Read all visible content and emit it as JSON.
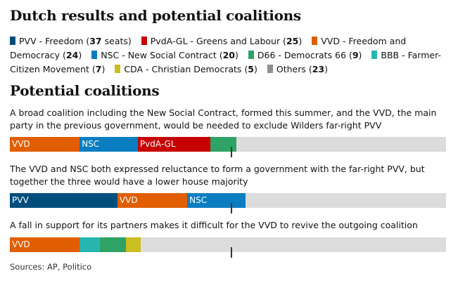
{
  "title": "Dutch results and potential coalitions",
  "subtitle": "Potential coalitions",
  "source": "Sources: AP, Politico",
  "colors": {
    "PVV": "#004e7c",
    "PvdA-GL": "#c70000",
    "VVD": "#e05e00",
    "NSC": "#0a7dc0",
    "D66": "#2ea365",
    "BBB": "#27b5b0",
    "CDA": "#cbbe1f",
    "Others": "#8f8f8f",
    "empty": "#dcdcdc"
  },
  "chart_data": {
    "type": "bar",
    "total_seats": 150,
    "majority": 76,
    "legend": [
      {
        "party": "PVV",
        "label": "PVV - Freedom",
        "seats": 37,
        "count_text": "37",
        "suffix": " seats)"
      },
      {
        "party": "PvdA-GL",
        "label": "PvdA-GL - Greens and Labour",
        "seats": 25,
        "count_text": "25",
        "suffix": ")"
      },
      {
        "party": "VVD",
        "label": "VVD - Freedom and Democracy",
        "seats": 24,
        "count_text": "24",
        "suffix": ")"
      },
      {
        "party": "NSC",
        "label": "NSC - New Social Contract",
        "seats": 20,
        "count_text": "20",
        "suffix": ")"
      },
      {
        "party": "D66",
        "label": "D66 - Democrats 66",
        "seats": 9,
        "count_text": "9",
        "suffix": ")"
      },
      {
        "party": "BBB",
        "label": "BBB - Farmer-Citizen Movement",
        "seats": 7,
        "count_text": "7",
        "suffix": ")"
      },
      {
        "party": "CDA",
        "label": "CDA - Christian Democrats",
        "seats": 5,
        "count_text": "5",
        "suffix": ")"
      },
      {
        "party": "Others",
        "label": "Others",
        "seats": 23,
        "count_text": "23",
        "suffix": ")"
      }
    ],
    "coalitions": [
      {
        "description": "A broad coalition including the New Social Contract, formed this summer, and the VVD, the main party in the previous government, would be needed to exclude Wilders far-right PVV",
        "segments": [
          {
            "party": "VVD",
            "seats": 24,
            "label": "VVD"
          },
          {
            "party": "NSC",
            "seats": 20,
            "label": "NSC"
          },
          {
            "party": "PvdA-GL",
            "seats": 25,
            "label": "PvdA-GL"
          },
          {
            "party": "D66",
            "seats": 9,
            "label": ""
          }
        ]
      },
      {
        "description": "The VVD and NSC both expressed reluctance to form a government with the far-right PVV, but together the three would have a lower house majority",
        "segments": [
          {
            "party": "PVV",
            "seats": 37,
            "label": "PVV"
          },
          {
            "party": "VVD",
            "seats": 24,
            "label": "VVD"
          },
          {
            "party": "NSC",
            "seats": 20,
            "label": "NSC"
          }
        ]
      },
      {
        "description": "A fall in support for its partners makes it difficult for the VVD to revive the outgoing coalition",
        "segments": [
          {
            "party": "VVD",
            "seats": 24,
            "label": "VVD"
          },
          {
            "party": "BBB",
            "seats": 7,
            "label": ""
          },
          {
            "party": "D66",
            "seats": 9,
            "label": ""
          },
          {
            "party": "CDA",
            "seats": 5,
            "label": ""
          }
        ]
      }
    ]
  }
}
